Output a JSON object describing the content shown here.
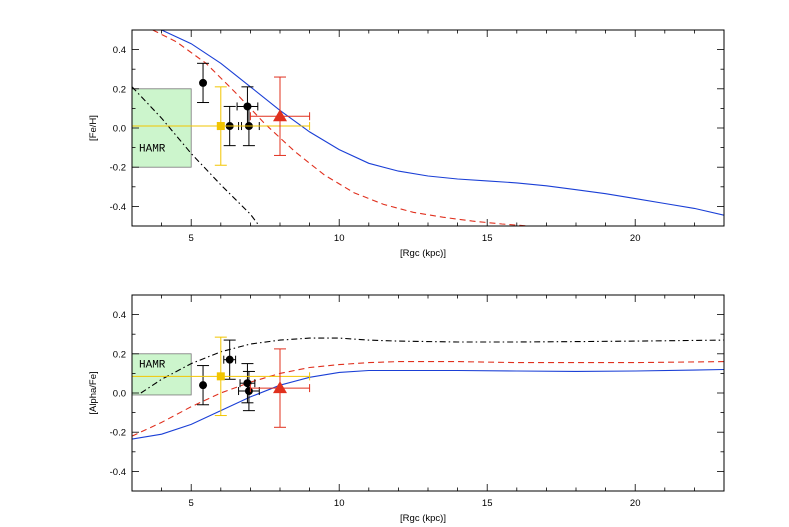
{
  "chart_data": [
    {
      "type": "scatter",
      "panel": "top",
      "xlabel": "[Rgc (kpc)]",
      "ylabel": "[Fe/H]",
      "xlim": [
        3,
        23
      ],
      "ylim": [
        -0.5,
        0.5
      ],
      "xticks": [
        5,
        10,
        15,
        20
      ],
      "yticks": [
        -0.4,
        -0.2,
        0.0,
        0.2,
        0.4
      ],
      "ytick_labels": [
        "-0.4",
        "-0.2",
        "0.0",
        "0.2",
        "0.4"
      ],
      "region": {
        "label": "HAMR",
        "x": [
          3,
          5
        ],
        "y": [
          -0.2,
          0.2
        ],
        "color": "#ccf5cc"
      },
      "series": [
        {
          "name": "blue model",
          "kind": "line",
          "color": "#1a3fd6",
          "dash": "solid",
          "x": [
            4.0,
            5.0,
            6.0,
            7.0,
            8.0,
            9.0,
            10.0,
            11.0,
            12.0,
            13.0,
            14.0,
            15.0,
            16.0,
            17.0,
            18.0,
            19.0,
            20.0,
            21.0,
            22.0,
            23.0
          ],
          "y": [
            0.5,
            0.43,
            0.33,
            0.21,
            0.09,
            -0.02,
            -0.11,
            -0.18,
            -0.22,
            -0.245,
            -0.26,
            -0.27,
            -0.28,
            -0.295,
            -0.315,
            -0.335,
            -0.36,
            -0.385,
            -0.41,
            -0.445
          ]
        },
        {
          "name": "red dashed model",
          "kind": "line",
          "color": "#e0301e",
          "dash": "dashed",
          "x": [
            3.7,
            4.5,
            5.5,
            6.5,
            7.5,
            8.5,
            9.5,
            10.5,
            11.5,
            12.5,
            13.5,
            14.5,
            15.5,
            16.4
          ],
          "y": [
            0.5,
            0.44,
            0.33,
            0.18,
            0.02,
            -0.12,
            -0.24,
            -0.33,
            -0.39,
            -0.43,
            -0.455,
            -0.475,
            -0.49,
            -0.5
          ]
        },
        {
          "name": "black dash-dot model",
          "kind": "line",
          "color": "#000000",
          "dash": "dashdot",
          "x": [
            3.0,
            4.0,
            5.0,
            6.0,
            7.0,
            7.3
          ],
          "y": [
            0.21,
            0.05,
            -0.13,
            -0.29,
            -0.44,
            -0.5
          ]
        },
        {
          "name": "black points",
          "kind": "points",
          "color": "#000000",
          "marker": "circle",
          "x": [
            5.4,
            6.3,
            6.9,
            6.95
          ],
          "y": [
            0.23,
            0.01,
            0.11,
            0.01
          ],
          "yerr": [
            0.1,
            0.1,
            0.1,
            0.1
          ],
          "xerr": [
            0,
            0.4,
            0.35,
            0.35
          ]
        },
        {
          "name": "yellow point",
          "kind": "points",
          "color": "#f2c500",
          "marker": "square",
          "x": [
            6.0
          ],
          "y": [
            0.01
          ],
          "yerr": [
            0.2
          ],
          "xerr": [
            3.0
          ]
        },
        {
          "name": "red triangle",
          "kind": "points",
          "color": "#e0301e",
          "marker": "triangle",
          "x": [
            8.0
          ],
          "y": [
            0.06
          ],
          "yerr": [
            0.2
          ],
          "xerr": [
            1.0
          ]
        }
      ]
    },
    {
      "type": "scatter",
      "panel": "bottom",
      "xlabel": "[Rgc (kpc)]",
      "ylabel": "[Alpha/Fe]",
      "xlim": [
        3,
        23
      ],
      "ylim": [
        -0.5,
        0.5
      ],
      "xticks": [
        5,
        10,
        15,
        20
      ],
      "yticks": [
        -0.4,
        -0.2,
        0.0,
        0.2,
        0.4
      ],
      "ytick_labels": [
        "-0.4",
        "-0.2",
        "0.0",
        "0.2",
        "0.4"
      ],
      "region": {
        "label": "HAMR",
        "x": [
          3,
          5
        ],
        "y": [
          -0.01,
          0.2
        ],
        "color": "#ccf5cc"
      },
      "series": [
        {
          "name": "blue model",
          "kind": "line",
          "color": "#1a3fd6",
          "dash": "solid",
          "x": [
            3.0,
            4.0,
            5.0,
            6.0,
            7.0,
            8.0,
            9.0,
            10.0,
            11.0,
            12.0,
            14.0,
            16.0,
            18.0,
            20.0,
            22.0,
            23.0
          ],
          "y": [
            -0.235,
            -0.21,
            -0.16,
            -0.09,
            -0.02,
            0.04,
            0.08,
            0.105,
            0.115,
            0.115,
            0.115,
            0.112,
            0.11,
            0.112,
            0.117,
            0.12
          ]
        },
        {
          "name": "red dashed model",
          "kind": "line",
          "color": "#e0301e",
          "dash": "dashed",
          "x": [
            3.0,
            4.0,
            5.0,
            6.0,
            7.0,
            8.0,
            9.0,
            10.0,
            11.0,
            12.0,
            14.0,
            16.0,
            18.0,
            20.0,
            23.0
          ],
          "y": [
            -0.22,
            -0.15,
            -0.07,
            0.0,
            0.055,
            0.1,
            0.13,
            0.145,
            0.155,
            0.16,
            0.16,
            0.155,
            0.155,
            0.155,
            0.16
          ]
        },
        {
          "name": "black dash-dot model",
          "kind": "line",
          "color": "#000000",
          "dash": "dashdot",
          "x": [
            3.3,
            4.0,
            5.0,
            6.0,
            7.0,
            8.0,
            9.0,
            10.0,
            11.0,
            12.0,
            14.0,
            16.0,
            18.0,
            20.0,
            23.0
          ],
          "y": [
            0.0,
            0.07,
            0.15,
            0.21,
            0.25,
            0.27,
            0.28,
            0.28,
            0.27,
            0.265,
            0.26,
            0.26,
            0.262,
            0.265,
            0.27
          ]
        },
        {
          "name": "black points",
          "kind": "points",
          "color": "#000000",
          "marker": "circle",
          "x": [
            5.4,
            6.3,
            6.9,
            6.95
          ],
          "y": [
            0.04,
            0.17,
            0.05,
            0.01
          ],
          "yerr": [
            0.1,
            0.1,
            0.1,
            0.1
          ],
          "xerr": [
            0,
            0.2,
            0.25,
            0.35
          ]
        },
        {
          "name": "yellow point",
          "kind": "points",
          "color": "#f2c500",
          "marker": "square",
          "x": [
            6.0
          ],
          "y": [
            0.085
          ],
          "yerr": [
            0.2
          ],
          "xerr": [
            3.0
          ]
        },
        {
          "name": "red triangle",
          "kind": "points",
          "color": "#e0301e",
          "marker": "triangle",
          "x": [
            8.0
          ],
          "y": [
            0.025
          ],
          "yerr": [
            0.2
          ],
          "xerr": [
            1.0
          ]
        }
      ]
    }
  ]
}
